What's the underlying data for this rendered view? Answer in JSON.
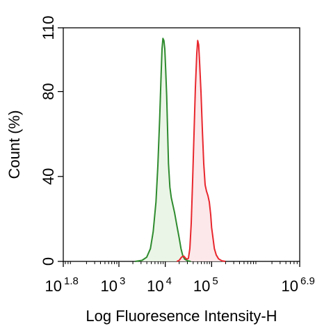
{
  "chart_data": {
    "type": "area",
    "xlabel": "Log Fluoresence Intensity-H",
    "ylabel": "Count  (%)",
    "x_scale": "log",
    "xlim_log10": [
      1.8,
      6.9
    ],
    "ylim": [
      0,
      110
    ],
    "y_ticks": [
      {
        "value": 0,
        "label": "0"
      },
      {
        "value": 40,
        "label": "40"
      },
      {
        "value": 80,
        "label": "80"
      },
      {
        "value": 110,
        "label": "110"
      }
    ],
    "x_ticks": [
      {
        "log10": 1.8,
        "base": "10",
        "exp": "1.8"
      },
      {
        "log10": 3,
        "base": "10",
        "exp": "3"
      },
      {
        "log10": 4,
        "base": "10",
        "exp": "4"
      },
      {
        "log10": 5,
        "base": "10",
        "exp": "5"
      },
      {
        "log10": 6.9,
        "base": "10",
        "exp": "6.9"
      }
    ],
    "series": [
      {
        "line_color": "#2e8b2e",
        "fill_color": "#e8f3e3",
        "points_log10x_y": [
          [
            3.35,
            0
          ],
          [
            3.5,
            0.5
          ],
          [
            3.6,
            2
          ],
          [
            3.68,
            6
          ],
          [
            3.74,
            14
          ],
          [
            3.8,
            28
          ],
          [
            3.84,
            45
          ],
          [
            3.88,
            68
          ],
          [
            3.91,
            88
          ],
          [
            3.93,
            100
          ],
          [
            3.95,
            105
          ],
          [
            3.97,
            104
          ],
          [
            3.99,
            100
          ],
          [
            4.01,
            90
          ],
          [
            4.03,
            78
          ],
          [
            4.05,
            62
          ],
          [
            4.07,
            46
          ],
          [
            4.1,
            35
          ],
          [
            4.13,
            30
          ],
          [
            4.16,
            27
          ],
          [
            4.2,
            23
          ],
          [
            4.25,
            17
          ],
          [
            4.3,
            11
          ],
          [
            4.34,
            6
          ],
          [
            4.38,
            2.5
          ],
          [
            4.42,
            1
          ],
          [
            4.48,
            0.3
          ],
          [
            4.55,
            0
          ]
        ]
      },
      {
        "line_color": "#e8262d",
        "fill_color": "#fbe4e6",
        "points_log10x_y": [
          [
            4.25,
            0
          ],
          [
            4.3,
            0.5
          ],
          [
            4.35,
            2
          ],
          [
            4.4,
            2.5
          ],
          [
            4.44,
            1.5
          ],
          [
            4.47,
            1
          ],
          [
            4.5,
            1.5
          ],
          [
            4.53,
            6
          ],
          [
            4.56,
            18
          ],
          [
            4.59,
            38
          ],
          [
            4.62,
            60
          ],
          [
            4.65,
            82
          ],
          [
            4.68,
            98
          ],
          [
            4.7,
            104
          ],
          [
            4.72,
            102
          ],
          [
            4.74,
            94
          ],
          [
            4.77,
            80
          ],
          [
            4.8,
            62
          ],
          [
            4.83,
            46
          ],
          [
            4.86,
            36
          ],
          [
            4.89,
            33
          ],
          [
            4.92,
            31
          ],
          [
            4.95,
            28
          ],
          [
            4.98,
            22
          ],
          [
            5.0,
            16
          ],
          [
            5.03,
            11
          ],
          [
            5.06,
            6
          ],
          [
            5.1,
            3
          ],
          [
            5.15,
            1.2
          ],
          [
            5.22,
            0.3
          ],
          [
            5.3,
            0
          ]
        ]
      }
    ]
  }
}
